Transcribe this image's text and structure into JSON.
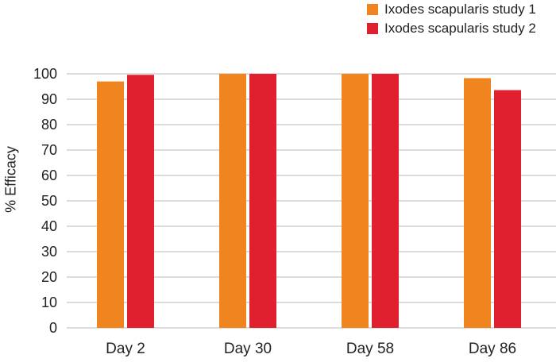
{
  "chart_data": {
    "type": "bar",
    "categories": [
      "Day 2",
      "Day 30",
      "Day 58",
      "Day 86"
    ],
    "series": [
      {
        "name": "Ixodes scapularis study 1",
        "color": "#f0841f",
        "values": [
          97,
          100,
          100,
          98.3
        ]
      },
      {
        "name": "Ixodes scapularis study 2",
        "color": "#e0202e",
        "values": [
          99.6,
          100,
          100,
          93.6
        ]
      }
    ],
    "xlabel": "",
    "ylabel": "% Efficacy",
    "ylim": [
      0,
      100
    ],
    "yticks": [
      0,
      10,
      20,
      30,
      40,
      50,
      60,
      70,
      80,
      90,
      100
    ],
    "grid": true,
    "legend_position": "top-right"
  }
}
